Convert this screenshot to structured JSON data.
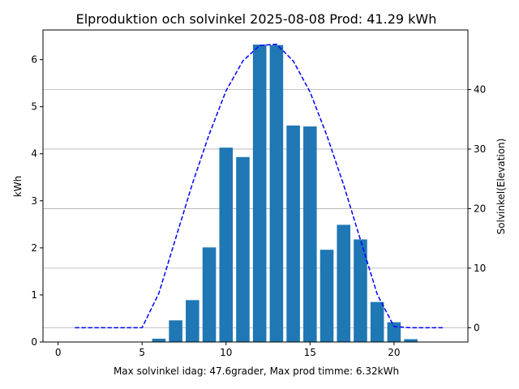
{
  "chart_data": {
    "type": "bar",
    "title": "Elproduktion och solvinkel 2025-08-08 Prod: 41.29 kWh",
    "xlabel": "Max solvinkel idag: 47.6grader, Max prod timme: 6.32kWh",
    "ylabel": "kWh",
    "ylabel_right": "Solvinkel(Elevation)",
    "xlim": [
      -0.9,
      24.4
    ],
    "ylim": [
      0,
      6.63
    ],
    "ylim_right": [
      -2.4,
      50
    ],
    "x_ticks": [
      0,
      5,
      10,
      15,
      20
    ],
    "y_ticks": [
      0,
      1,
      2,
      3,
      4,
      5,
      6
    ],
    "y_ticks_right": [
      0,
      10,
      20,
      30,
      40
    ],
    "grid": "horizontal, right axis",
    "colors": {
      "bars": "#1f77b4",
      "elevation": "#0000ff",
      "right_axis_label": "#0000ff",
      "grid": "#b0b0b0"
    },
    "series": [
      {
        "type": "bar",
        "hours": [
          6,
          7,
          8,
          9,
          10,
          11,
          12,
          13,
          14,
          15,
          16,
          17,
          18,
          19,
          20,
          21
        ],
        "values": [
          0.07,
          0.46,
          0.89,
          2.01,
          4.13,
          3.93,
          6.32,
          6.31,
          4.6,
          4.58,
          1.96,
          2.49,
          2.18,
          0.85,
          0.42,
          0.06
        ]
      },
      {
        "type": "line",
        "style": "dashed",
        "axis": "right",
        "hours": [
          1,
          2,
          3,
          4,
          5,
          6,
          7,
          8,
          9,
          10,
          11,
          12,
          13,
          14,
          15,
          16,
          17,
          18,
          19,
          20,
          21,
          22,
          23
        ],
        "values": [
          0,
          0,
          0,
          0,
          0,
          5.8,
          15.0,
          24.2,
          32.5,
          39.8,
          44.8,
          47.4,
          47.6,
          44.8,
          39.6,
          32.3,
          24.0,
          14.8,
          5.6,
          0.2,
          0,
          0,
          0
        ]
      }
    ]
  }
}
